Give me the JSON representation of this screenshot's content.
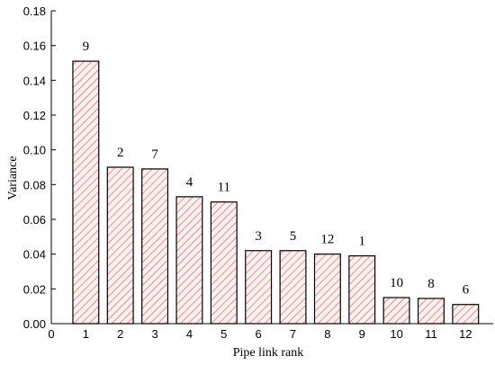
{
  "chart_data": {
    "type": "bar",
    "x_label": "Pipe link rank",
    "y_label": "Variance",
    "x": [
      1,
      2,
      3,
      4,
      5,
      6,
      7,
      8,
      9,
      10,
      11,
      12
    ],
    "values": [
      0.151,
      0.09,
      0.089,
      0.073,
      0.07,
      0.042,
      0.042,
      0.04,
      0.039,
      0.015,
      0.0145,
      0.011
    ],
    "bar_labels": [
      "9",
      "2",
      "7",
      "4",
      "11",
      "3",
      "5",
      "12",
      "1",
      "10",
      "8",
      "6"
    ],
    "color": "#d9534f",
    "xlim": [
      0,
      12.8
    ],
    "xticks": [
      0,
      1,
      2,
      3,
      4,
      5,
      6,
      7,
      8,
      9,
      10,
      11,
      12
    ],
    "ylim": [
      0,
      0.18
    ],
    "yticks": [
      {
        "value": 0,
        "label": "0.00"
      },
      {
        "value": 0.02,
        "label": "0.02"
      },
      {
        "value": 0.04,
        "label": "0.04"
      },
      {
        "value": 0.06,
        "label": "0.06"
      },
      {
        "value": 0.08,
        "label": "0.08"
      },
      {
        "value": 0.1,
        "label": "0.10"
      },
      {
        "value": 0.12,
        "label": "0.12"
      },
      {
        "value": 0.14,
        "label": "0.14"
      },
      {
        "value": 0.16,
        "label": "0.16"
      },
      {
        "value": 0.18,
        "label": "0.18"
      }
    ],
    "grid": false
  }
}
